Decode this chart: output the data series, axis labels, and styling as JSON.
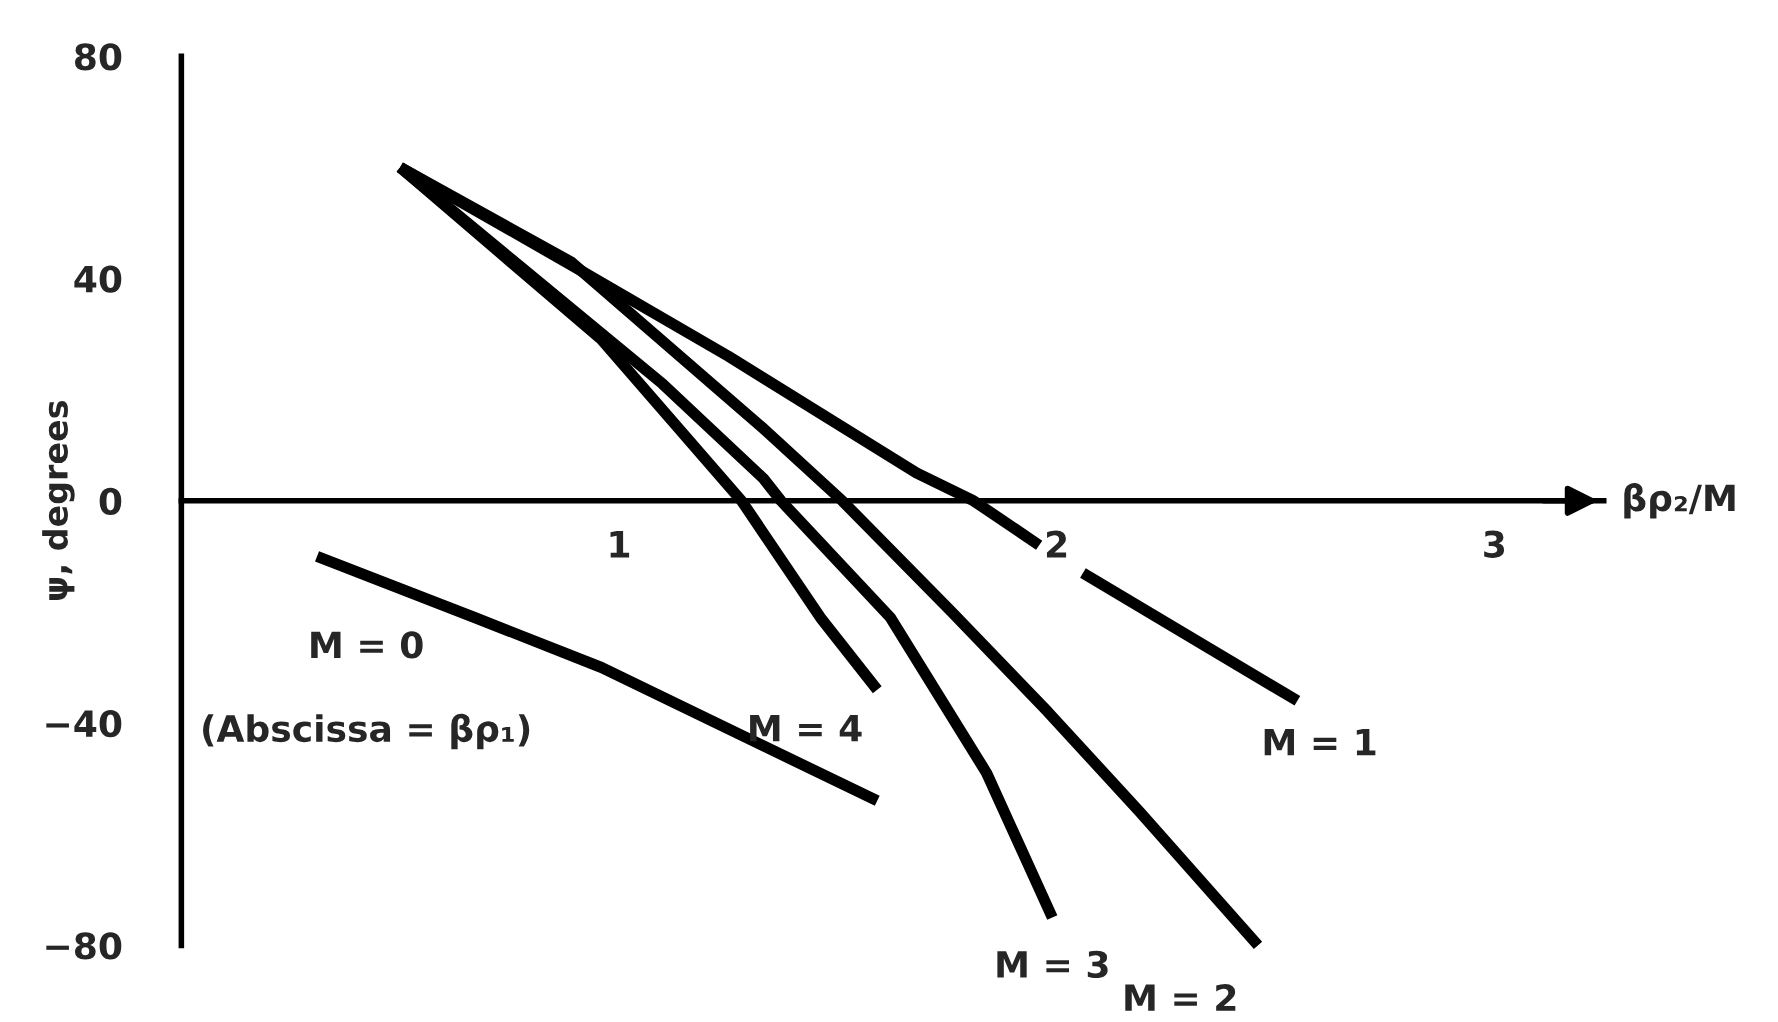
{
  "chart_data": {
    "type": "line",
    "xlabel": "βρ₂/M",
    "ylabel": "ψ, degrees",
    "xlim": [
      0,
      3.25
    ],
    "ylim": [
      -80,
      80
    ],
    "xticks": [
      1,
      2,
      3
    ],
    "yticks": [
      -80,
      -40,
      0,
      40,
      80
    ],
    "grid": false,
    "legend": false,
    "line_style": "solid",
    "marker": "none",
    "series": [
      {
        "name": "M = 1",
        "color": "#000000",
        "x": [
          0.5,
          0.9,
          1.25,
          1.68,
          1.81,
          1.96,
          2.0,
          2.06,
          2.55
        ],
        "values": [
          60,
          42,
          26,
          5,
          0,
          -8,
          null,
          -13,
          -36
        ]
      },
      {
        "name": "M = 2",
        "color": "#000000",
        "x": [
          0.5,
          0.89,
          1.33,
          1.51,
          1.76,
          1.98,
          2.19,
          2.46
        ],
        "values": [
          60,
          43,
          13,
          0,
          -20,
          -38,
          -56,
          -80
        ]
      },
      {
        "name": "M = 3",
        "color": "#000000",
        "x": [
          0.5,
          1.1,
          1.33,
          1.37,
          1.62,
          1.84,
          1.99
        ],
        "values": [
          60,
          21,
          4,
          0,
          -21,
          -49,
          -75
        ]
      },
      {
        "name": "M = 4",
        "color": "#000000",
        "x": [
          0.5,
          0.96,
          1.28,
          1.46,
          1.59
        ],
        "values": [
          60,
          29,
          0,
          -21,
          -34
        ]
      },
      {
        "name": "M = 0",
        "color": "#000000",
        "x": [
          0.31,
          0.67,
          0.96,
          1.59
        ],
        "values": [
          -10,
          -21,
          -30,
          -54
        ]
      }
    ],
    "annotations": [
      "(Abscissa = βρ₁)"
    ]
  }
}
